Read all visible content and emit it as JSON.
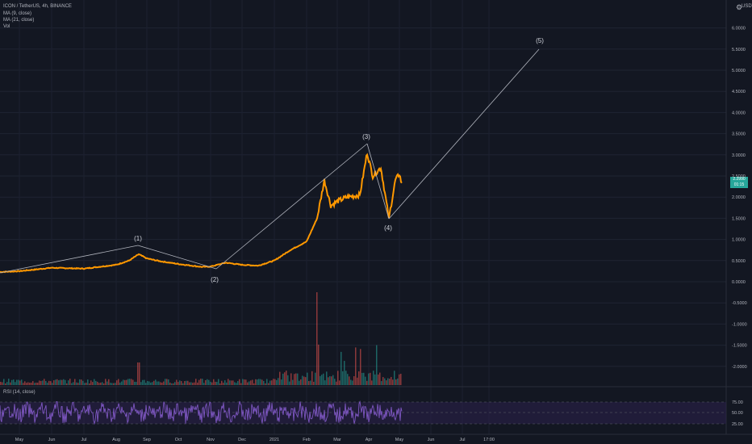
{
  "legend": {
    "symbol": "ICON / TetherUS, 4h, BINANCE",
    "ma1": "MA (9, close)",
    "ma2": "MA (21, close)",
    "vol": "Vol",
    "rsi": "RSI (14, close)"
  },
  "price_axis": {
    "currency": "USDT",
    "labels": [
      "6.0000",
      "5.5000",
      "5.0000",
      "4.5000",
      "4.0000",
      "3.5000",
      "3.0000",
      "2.5000",
      "2.0000",
      "1.5000",
      "1.0000",
      "0.5000",
      "0.0000",
      "-0.5000",
      "-1.0000",
      "-1.5000",
      "-2.0000"
    ],
    "current_price": "2.2990",
    "countdown": "01:15"
  },
  "rsi_axis": {
    "labels": [
      "75.00",
      "50.00",
      "25.00"
    ]
  },
  "time_axis": {
    "labels": [
      "May",
      "Jun",
      "Jul",
      "Aug",
      "Sep",
      "Oct",
      "Nov",
      "Dec",
      "2021",
      "Feb",
      "Mar",
      "Apr",
      "May",
      "Jun",
      "Jul",
      "17:00"
    ]
  },
  "waves": [
    "(1)",
    "(2)",
    "(3)",
    "(4)",
    "(5)"
  ],
  "colors": {
    "background": "#131722",
    "price": "#ff9800",
    "rsi": "#7e57c2",
    "volume_up": "#26a69a",
    "volume_down": "#ef5350",
    "wave_line": "#b2b5be",
    "axis_text": "#b2b5be"
  },
  "chart_data": {
    "type": "line",
    "title": "ICON / TetherUS, 4h, BINANCE",
    "x": [
      "May",
      "Jun",
      "Jul",
      "Aug",
      "Sep",
      "Oct",
      "Nov",
      "Dec",
      "2021",
      "Feb",
      "Mar",
      "Apr",
      "May"
    ],
    "series": [
      {
        "name": "ICON / TetherUS",
        "values": [
          0.23,
          0.32,
          0.31,
          0.45,
          0.62,
          0.45,
          0.35,
          0.4,
          0.45,
          0.8,
          1.85,
          2.3,
          2.3
        ]
      }
    ],
    "elliott_wave_points": [
      {
        "label": "(1)",
        "date": "Aug",
        "price": 0.85
      },
      {
        "label": "(2)",
        "date": "Nov",
        "price": 0.28
      },
      {
        "label": "(3)",
        "date": "Apr",
        "price": 3.3
      },
      {
        "label": "(4)",
        "date": "Apr",
        "price": 1.45
      },
      {
        "label": "(5)",
        "date": "Jul",
        "price": 5.5
      }
    ],
    "ylim": [
      -2.2,
      6.4
    ],
    "rsi": {
      "name": "RSI (14, close)",
      "levels": [
        25,
        50,
        75
      ],
      "ylim": [
        15,
        85
      ]
    }
  }
}
